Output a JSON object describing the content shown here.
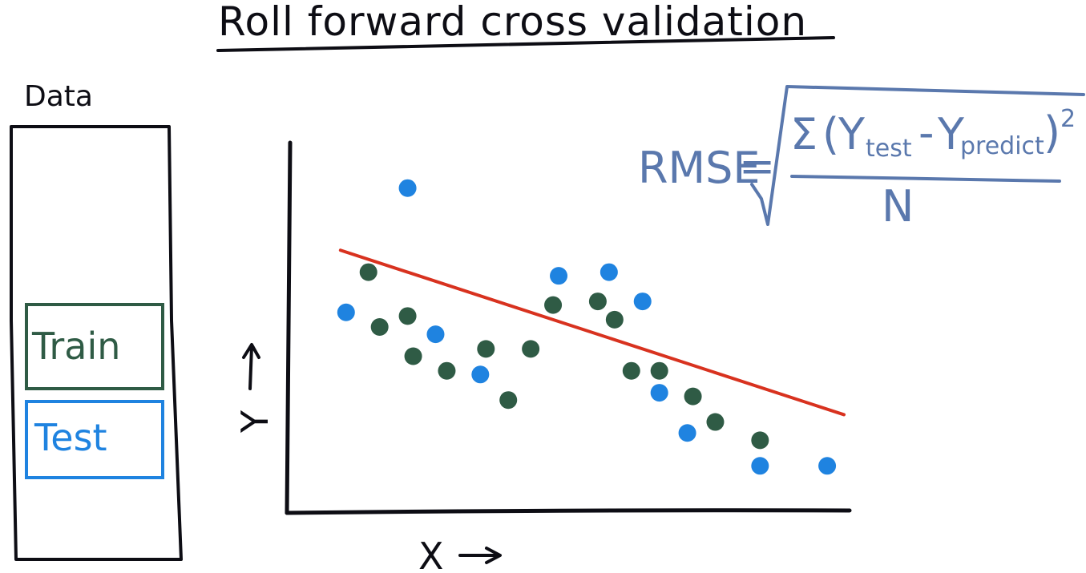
{
  "title": "Roll forward cross validation",
  "data_box": {
    "label": "Data",
    "train_label": "Train",
    "test_label": "Test"
  },
  "axes": {
    "y_label": "Y",
    "x_label": "X"
  },
  "formula": {
    "lhs": "RMSE",
    "equals": "=",
    "sum": "Σ",
    "open_paren": "(",
    "y1": "Y",
    "sub1": "test",
    "minus": "-",
    "y2": "Y",
    "sub2": "predict",
    "close_paren": ")",
    "exponent": "2",
    "denominator": "N"
  },
  "colors": {
    "ink": "#0d0d14",
    "train": "#2f5b45",
    "test": "#1f83e0",
    "fit_line": "#d8321f",
    "formula": "#5a78ad"
  },
  "chart_data": {
    "type": "scatter",
    "xlim": [
      0,
      100
    ],
    "ylim": [
      0,
      100
    ],
    "series": [
      {
        "name": "Train",
        "points": [
          [
            14,
            65
          ],
          [
            16,
            50
          ],
          [
            21,
            53
          ],
          [
            22,
            42
          ],
          [
            28,
            38
          ],
          [
            35,
            44
          ],
          [
            39,
            30
          ],
          [
            43,
            44
          ],
          [
            47,
            56
          ],
          [
            55,
            57
          ],
          [
            58,
            52
          ],
          [
            61,
            38
          ],
          [
            66,
            38
          ],
          [
            72,
            31
          ],
          [
            76,
            24
          ],
          [
            84,
            19
          ]
        ]
      },
      {
        "name": "Test",
        "points": [
          [
            10,
            54
          ],
          [
            21,
            88
          ],
          [
            26,
            48
          ],
          [
            34,
            37
          ],
          [
            48,
            64
          ],
          [
            57,
            65
          ],
          [
            63,
            57
          ],
          [
            66,
            32
          ],
          [
            71,
            21
          ],
          [
            84,
            12
          ],
          [
            96,
            12
          ]
        ]
      }
    ],
    "fit_line": [
      [
        9,
        71
      ],
      [
        99,
        26
      ]
    ]
  }
}
